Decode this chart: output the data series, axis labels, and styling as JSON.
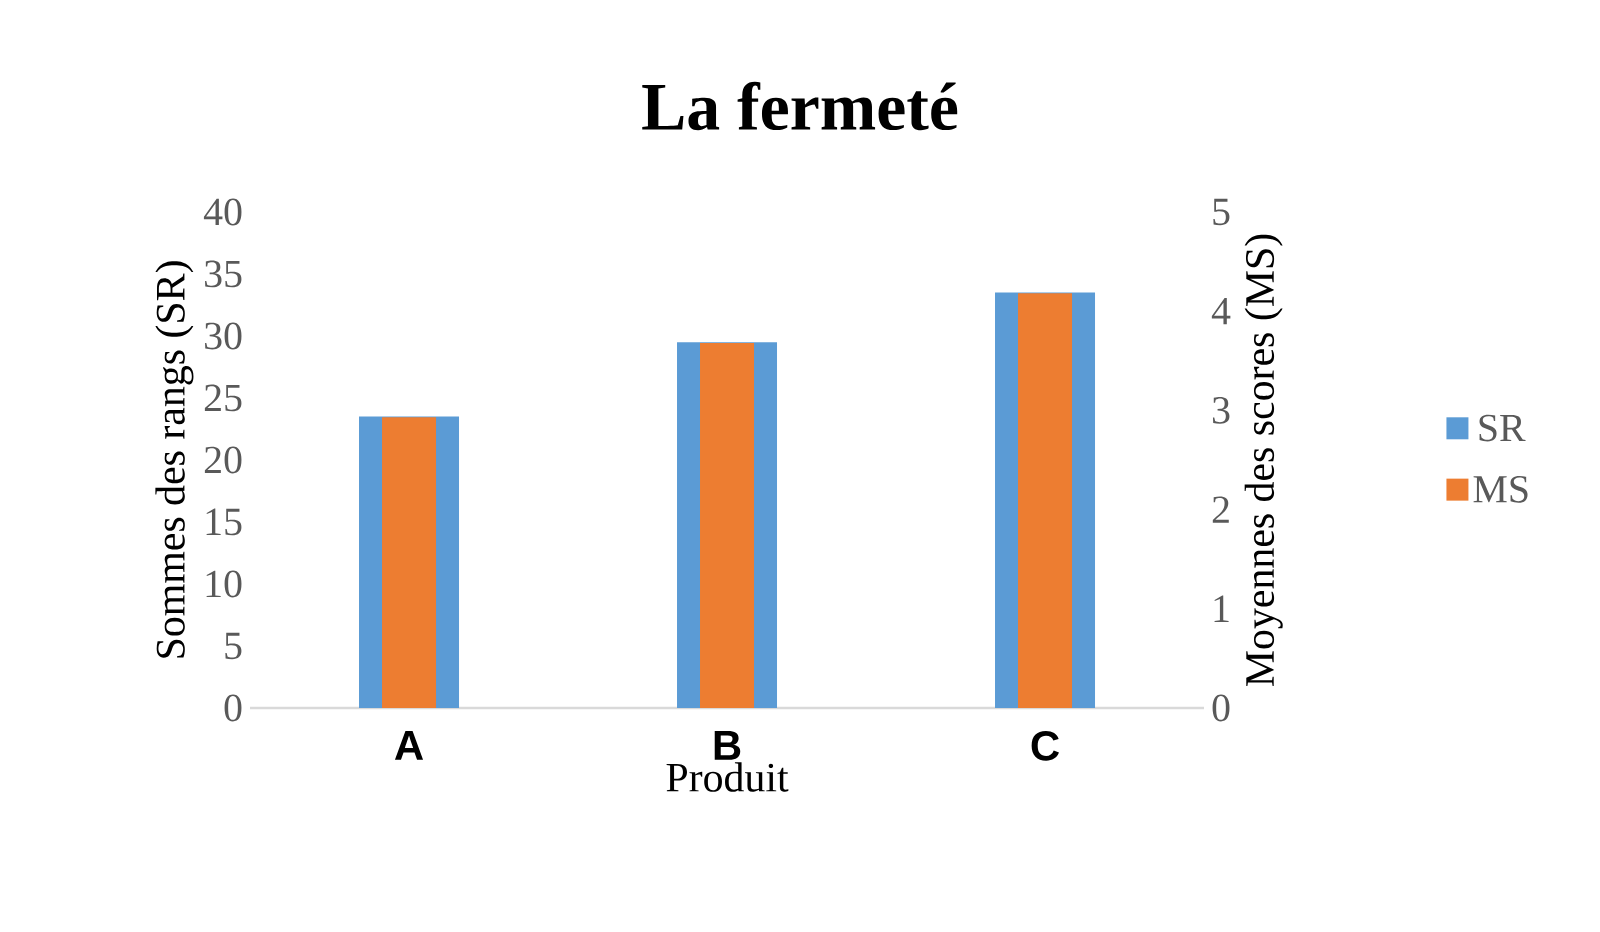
{
  "chart_data": {
    "type": "bar",
    "title": "La fermeté",
    "categories": [
      "A",
      "B",
      "C"
    ],
    "xlabel": "Produit",
    "ylabel": "Sommes des rangs (SR)",
    "y2label": "Moyennes des scores (MS)",
    "series": [
      {
        "name": "SR",
        "color": "#5b9bd5",
        "values": [
          23.5,
          29.5,
          33.5
        ]
      },
      {
        "name": "MS",
        "color": "#ed7d31",
        "axis": "y2",
        "values": [
          2.93,
          3.68,
          4.18
        ]
      }
    ],
    "ylim": [
      0,
      40
    ],
    "yticks": [
      0,
      5,
      10,
      15,
      20,
      25,
      30,
      35,
      40
    ],
    "y2lim": [
      0,
      5
    ],
    "y2ticks": [
      0,
      1,
      2,
      3,
      4,
      5
    ],
    "legend": "right"
  }
}
